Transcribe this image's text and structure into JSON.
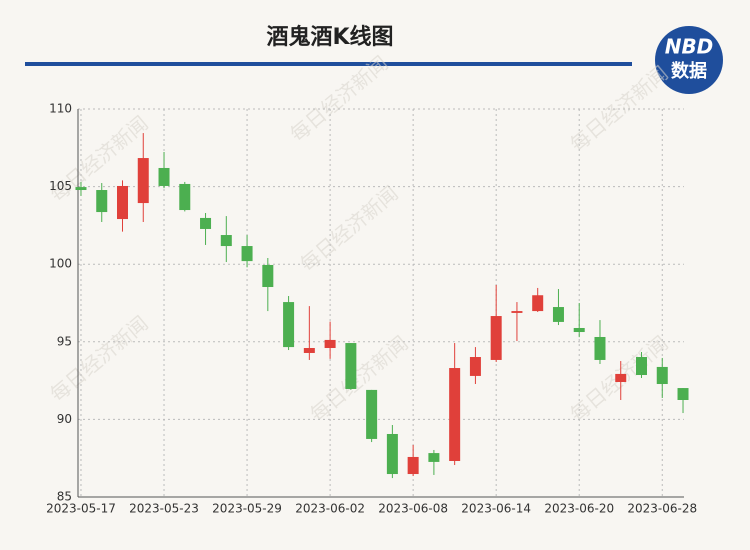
{
  "chart_data": {
    "type": "candlestick",
    "title": "酒鬼酒K线图",
    "brand": {
      "name": "NBD",
      "subtitle": "数据"
    },
    "watermark": "每日经济新闻",
    "categories": [
      "2023-05-17",
      null,
      null,
      null,
      "2023-05-23",
      null,
      null,
      null,
      "2023-05-29",
      null,
      null,
      null,
      "2023-06-02",
      null,
      null,
      null,
      "2023-06-08",
      null,
      null,
      null,
      "2023-06-14",
      null,
      null,
      null,
      "2023-06-20",
      null,
      null,
      null,
      "2023-06-28",
      null
    ],
    "open": [
      104.97,
      104.78,
      102.91,
      103.94,
      106.2,
      105.17,
      102.98,
      101.88,
      101.17,
      99.95,
      97.56,
      94.28,
      94.6,
      94.92,
      91.9,
      89.06,
      86.48,
      87.83,
      87.32,
      92.8,
      93.83,
      96.86,
      96.98,
      97.24,
      95.89,
      95.31,
      92.41,
      94.02,
      93.38,
      92.02
    ],
    "high": [
      105.3,
      105.23,
      105.4,
      108.45,
      107.23,
      105.3,
      103.3,
      103.1,
      101.88,
      100.4,
      97.95,
      97.3,
      96.3,
      94.92,
      91.9,
      89.64,
      88.35,
      88.03,
      94.92,
      94.66,
      98.66,
      97.56,
      98.47,
      98.4,
      97.5,
      96.4,
      93.76,
      94.34,
      93.96,
      92.02
    ],
    "low": [
      104.4,
      102.72,
      102.1,
      102.72,
      104.9,
      103.4,
      101.24,
      100.14,
      99.8,
      96.98,
      94.47,
      93.83,
      93.9,
      91.9,
      88.54,
      86.22,
      86.35,
      86.42,
      87.06,
      92.28,
      93.7,
      95.05,
      96.92,
      96.08,
      95.3,
      93.57,
      91.25,
      92.67,
      91.38,
      90.41
    ],
    "close": [
      104.78,
      103.36,
      105.04,
      106.84,
      105.04,
      103.49,
      102.27,
      101.17,
      100.2,
      98.53,
      94.66,
      94.6,
      95.12,
      91.96,
      88.74,
      86.48,
      87.58,
      87.26,
      93.31,
      94.02,
      96.66,
      96.98,
      98.0,
      96.28,
      95.63,
      93.83,
      92.93,
      92.86,
      92.28,
      91.25
    ],
    "up_color": "#e0403a",
    "down_color": "#4caf50",
    "ylim": [
      85,
      110
    ],
    "yticks": [
      85,
      90,
      95,
      100,
      105,
      110
    ],
    "grid": true
  }
}
